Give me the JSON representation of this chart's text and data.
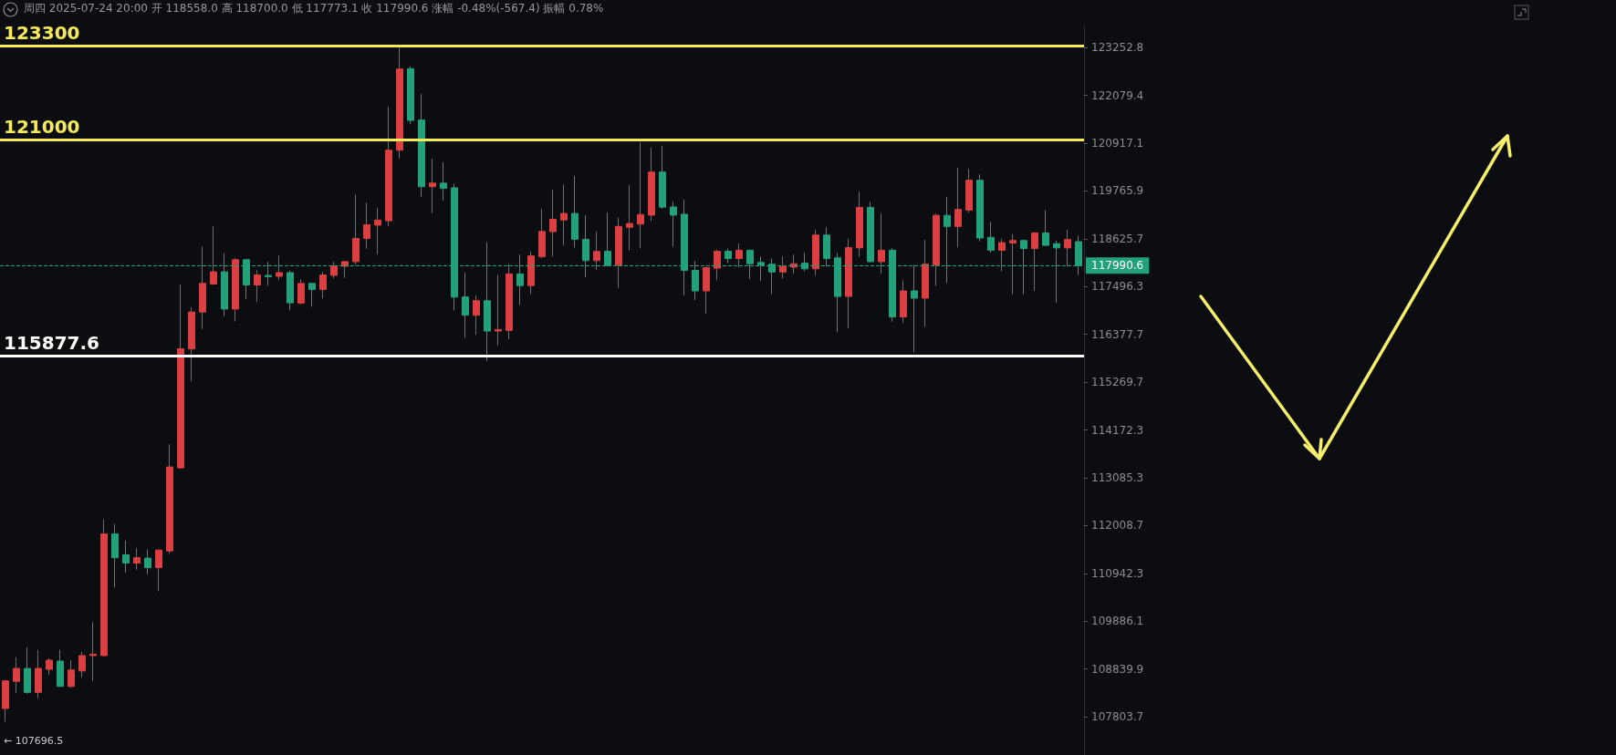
{
  "chart_data": {
    "type": "candlestick",
    "log": true,
    "grid": false,
    "tick_labels": "y",
    "categories": [
      null,
      null,
      null,
      null,
      null,
      null,
      null,
      null,
      null,
      null,
      null,
      null,
      null,
      null,
      null,
      null,
      null,
      null,
      null,
      null,
      null,
      null,
      null,
      null,
      null,
      null,
      null,
      null,
      null,
      null,
      null,
      null,
      null,
      null,
      null,
      null,
      null,
      null,
      null,
      null,
      null,
      null,
      null,
      null,
      null,
      null,
      null,
      null,
      null,
      null,
      null,
      null,
      null,
      null,
      null,
      null,
      null,
      null,
      null,
      null,
      null,
      null,
      null,
      null,
      null,
      null,
      null,
      null,
      null,
      null,
      null,
      null,
      null,
      null,
      null,
      null,
      null,
      null,
      null,
      null,
      null,
      null,
      null,
      null,
      null,
      null,
      null,
      null,
      null,
      null,
      null,
      null,
      null,
      null,
      null,
      null,
      null,
      null,
      null
    ],
    "ohlc": [
      [
        107980,
        108600,
        107696.5,
        108580
      ],
      [
        108570,
        109090,
        108320,
        108850
      ],
      [
        108850,
        109310,
        108300,
        108330
      ],
      [
        108330,
        109250,
        108200,
        108850
      ],
      [
        108830,
        109070,
        108715,
        109030
      ],
      [
        109010,
        109250,
        108450,
        108460
      ],
      [
        108460,
        109030,
        108425,
        108815
      ],
      [
        108795,
        109210,
        108660,
        109130
      ],
      [
        109130,
        109860,
        108570,
        109160
      ],
      [
        109130,
        112140,
        109110,
        111820
      ],
      [
        111820,
        112040,
        110630,
        111290
      ],
      [
        111355,
        111670,
        110955,
        111170
      ],
      [
        111170,
        111500,
        111020,
        111290
      ],
      [
        111280,
        111475,
        110920,
        111070
      ],
      [
        111070,
        111475,
        110545,
        111460
      ],
      [
        111440,
        113850,
        111380,
        113330
      ],
      [
        113310,
        117557,
        113290,
        116043
      ],
      [
        116040,
        117010,
        115290,
        116900
      ],
      [
        116900,
        118440,
        116500,
        117570
      ],
      [
        117557,
        118925,
        117535,
        117845
      ],
      [
        117845,
        118280,
        116800,
        116970
      ],
      [
        116970,
        118170,
        116680,
        118130
      ],
      [
        118130,
        118140,
        117200,
        117535
      ],
      [
        117535,
        117880,
        117130,
        117770
      ],
      [
        117760,
        118080,
        117520,
        117730
      ],
      [
        117740,
        118225,
        117650,
        117825
      ],
      [
        117825,
        117880,
        116935,
        117115
      ],
      [
        117110,
        117665,
        117080,
        117570
      ],
      [
        117570,
        117575,
        117020,
        117430
      ],
      [
        117430,
        117845,
        117220,
        117770
      ],
      [
        117760,
        118085,
        117690,
        117990
      ],
      [
        117975,
        118095,
        117700,
        118085
      ],
      [
        118085,
        119690,
        118010,
        118635
      ],
      [
        118635,
        119490,
        118385,
        118960
      ],
      [
        118950,
        119360,
        118255,
        119070
      ],
      [
        119055,
        121805,
        118925,
        120750
      ],
      [
        120750,
        123250,
        120550,
        122725
      ],
      [
        122735,
        122790,
        121375,
        121470
      ],
      [
        121480,
        122115,
        119630,
        119870
      ],
      [
        119870,
        120545,
        119235,
        119955
      ],
      [
        119955,
        120455,
        119540,
        119830
      ],
      [
        119845,
        119940,
        116935,
        117250
      ],
      [
        117255,
        117825,
        116300,
        116825
      ],
      [
        116825,
        117295,
        116370,
        117165
      ],
      [
        117165,
        118540,
        115765,
        116455
      ],
      [
        116455,
        117770,
        116120,
        116490
      ],
      [
        116470,
        118025,
        116265,
        117795
      ],
      [
        117795,
        118255,
        117070,
        117520
      ],
      [
        117520,
        118325,
        117320,
        118220
      ],
      [
        118205,
        119340,
        118170,
        118800
      ],
      [
        118795,
        119810,
        118205,
        119090
      ],
      [
        119075,
        119920,
        118470,
        119230
      ],
      [
        119230,
        120125,
        118420,
        118615
      ],
      [
        118615,
        119180,
        117720,
        118110
      ],
      [
        118110,
        118800,
        117885,
        118325
      ],
      [
        118330,
        119245,
        117970,
        117995
      ],
      [
        118010,
        119130,
        117470,
        118920
      ],
      [
        118900,
        119910,
        118355,
        118990
      ],
      [
        118975,
        120940,
        118395,
        119205
      ],
      [
        119190,
        120810,
        119050,
        120220
      ],
      [
        120220,
        120850,
        119340,
        119380
      ],
      [
        119385,
        119515,
        118445,
        119190
      ],
      [
        119210,
        119555,
        117295,
        117880
      ],
      [
        117880,
        118100,
        117180,
        117395
      ],
      [
        117395,
        117970,
        116860,
        117945
      ],
      [
        117930,
        118370,
        117645,
        118330
      ],
      [
        118330,
        118395,
        118050,
        118160
      ],
      [
        118160,
        118510,
        117955,
        118355
      ],
      [
        118355,
        118360,
        117675,
        118035
      ],
      [
        118065,
        118200,
        117625,
        118010
      ],
      [
        118025,
        118160,
        117315,
        117840
      ],
      [
        117840,
        118200,
        117685,
        117970
      ],
      [
        117955,
        118255,
        117795,
        118035
      ],
      [
        118050,
        118300,
        117855,
        117915
      ],
      [
        117915,
        118835,
        117755,
        118715
      ],
      [
        118715,
        118900,
        117970,
        118160
      ],
      [
        118175,
        118290,
        116430,
        117265
      ],
      [
        117265,
        118625,
        116515,
        118415
      ],
      [
        118410,
        119750,
        118200,
        119375
      ],
      [
        119375,
        119505,
        118060,
        118085
      ],
      [
        118085,
        119230,
        117795,
        118355
      ],
      [
        118355,
        118410,
        116670,
        116785
      ],
      [
        116785,
        117645,
        116645,
        117395
      ],
      [
        117395,
        118010,
        115960,
        117225
      ],
      [
        117225,
        118600,
        116555,
        118025
      ],
      [
        118010,
        119230,
        117510,
        119185
      ],
      [
        119185,
        119620,
        117585,
        118920
      ],
      [
        118920,
        120325,
        118430,
        119325
      ],
      [
        119310,
        120300,
        119245,
        120025
      ],
      [
        120025,
        120170,
        118565,
        118645
      ],
      [
        118660,
        119030,
        118295,
        118355
      ],
      [
        118355,
        118625,
        117855,
        118535
      ],
      [
        118525,
        118740,
        117315,
        118585
      ],
      [
        118585,
        118600,
        117315,
        118395
      ],
      [
        118395,
        118780,
        117395,
        118765
      ],
      [
        118765,
        119310,
        118455,
        118470
      ],
      [
        118510,
        118590,
        117125,
        118410
      ],
      [
        118410,
        118835,
        117970,
        118610
      ],
      [
        118558,
        118700,
        117773.1,
        117990.6
      ]
    ],
    "colors": [
      "#dc3f41",
      "#dc3f41",
      "#22a17c",
      "#dc3f41",
      "#dc3f41",
      "#22a17c",
      "#dc3f41",
      "#dc3f41",
      "#dc3f41",
      "#dc3f41",
      "#22a17c",
      "#22a17c",
      "#dc3f41",
      "#22a17c",
      "#dc3f41",
      "#dc3f41",
      "#dc3f41",
      "#dc3f41",
      "#dc3f41",
      "#dc3f41",
      "#22a17c",
      "#dc3f41",
      "#22a17c",
      "#dc3f41",
      "#22a17c",
      "#dc3f41",
      "#22a17c",
      "#dc3f41",
      "#22a17c",
      "#dc3f41",
      "#dc3f41",
      "#dc3f41",
      "#dc3f41",
      "#dc3f41",
      "#dc3f41",
      "#dc3f41",
      "#dc3f41",
      "#22a17c",
      "#22a17c",
      "#dc3f41",
      "#22a17c",
      "#22a17c",
      "#22a17c",
      "#dc3f41",
      "#22a17c",
      "#dc3f41",
      "#dc3f41",
      "#22a17c",
      "#dc3f41",
      "#dc3f41",
      "#dc3f41",
      "#dc3f41",
      "#22a17c",
      "#22a17c",
      "#dc3f41",
      "#22a17c",
      "#dc3f41",
      "#dc3f41",
      "#dc3f41",
      "#dc3f41",
      "#22a17c",
      "#22a17c",
      "#22a17c",
      "#22a17c",
      "#dc3f41",
      "#dc3f41",
      "#22a17c",
      "#dc3f41",
      "#22a17c",
      "#22a17c",
      "#22a17c",
      "#dc3f41",
      "#dc3f41",
      "#22a17c",
      "#dc3f41",
      "#22a17c",
      "#22a17c",
      "#dc3f41",
      "#dc3f41",
      "#22a17c",
      "#dc3f41",
      "#22a17c",
      "#dc3f41",
      "#22a17c",
      "#dc3f41",
      "#dc3f41",
      "#22a17c",
      "#dc3f41",
      "#dc3f41",
      "#22a17c",
      "#22a17c",
      "#dc3f41",
      "#dc3f41",
      "#22a17c",
      "#dc3f41",
      "#22a17c",
      "#22a17c",
      "#dc3f41",
      "#22a17c"
    ],
    "ylim": [
      106980,
      123800
    ],
    "yticks": [
      107803.7,
      108839.9,
      109886.1,
      110942.3,
      112008.7,
      113085.3,
      114172.3,
      115269.7,
      116377.7,
      117496.3,
      118625.7,
      119765.9,
      120917.1,
      122079.4,
      123252.8
    ],
    "ref_lines": [
      {
        "axis": "y",
        "value": 123300,
        "label": "123300",
        "color": "#f5ea5a",
        "line_style": "solid"
      },
      {
        "axis": "y",
        "value": 121000,
        "label": "121000",
        "color": "#f5ea5a",
        "line_style": "solid"
      },
      {
        "axis": "y",
        "value": 115877.6,
        "label": "115877.6",
        "color": "#ffffff",
        "line_style": "solid"
      },
      {
        "axis": "y",
        "value": 117990.6,
        "label": "117990.6",
        "color": "#22a17c",
        "line_style": "dashed"
      }
    ],
    "annotations": [
      "周四 2025-07-24 20:00 开 118558.0 高 118700.0 低 117773.1 收 117990.6 涨幅 -0.48%(-567.4) 振幅 0.78%",
      "← 107696.5"
    ]
  }
}
